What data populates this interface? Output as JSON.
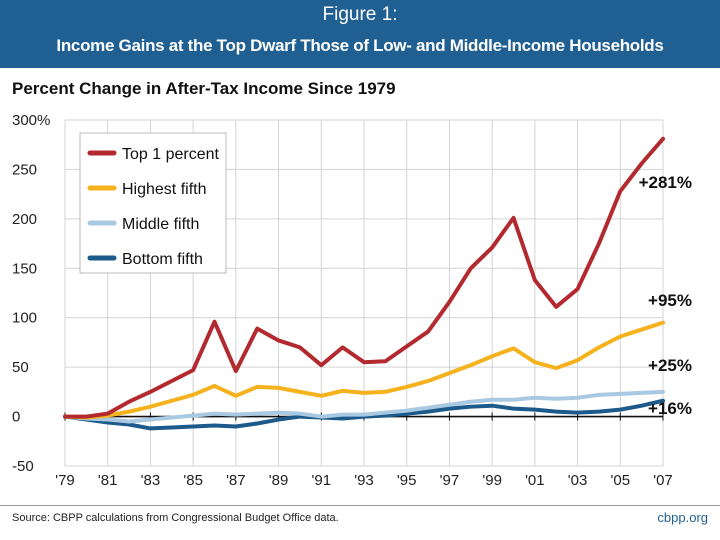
{
  "figure": {
    "label": "Figure 1:",
    "title": "Income Gains at the Top Dwarf Those of Low- and Middle-Income Households"
  },
  "footer": {
    "source": "Source: CBPP calculations from Congressional Budget Office data.",
    "credit": "cbpp.org"
  },
  "chart_data": {
    "type": "line",
    "title": "Income Gains at the Top Dwarf Those of Low- and Middle-Income Households",
    "subtitle": "Percent Change in After-Tax Income Since 1979",
    "xlabel": "",
    "ylabel": "",
    "ylim": [
      -50,
      300
    ],
    "xlim": [
      1979,
      2007
    ],
    "y_ticks": [
      -50,
      0,
      50,
      100,
      150,
      200,
      250,
      300
    ],
    "y_tick_labels": [
      "-50",
      "0",
      "50",
      "100",
      "150",
      "200",
      "250",
      "300%"
    ],
    "x_ticks": [
      1979,
      1981,
      1983,
      1985,
      1987,
      1989,
      1991,
      1993,
      1995,
      1997,
      1999,
      2001,
      2003,
      2005,
      2007
    ],
    "x_tick_labels": [
      "'79",
      "'81",
      "'83",
      "'85",
      "'87",
      "'89",
      "'91",
      "'93",
      "'95",
      "'97",
      "'99",
      "'01",
      "'03",
      "'05",
      "'07"
    ],
    "grid": true,
    "legend_position": "top-left",
    "x": [
      1979,
      1980,
      1981,
      1982,
      1983,
      1984,
      1985,
      1986,
      1987,
      1988,
      1989,
      1990,
      1991,
      1992,
      1993,
      1994,
      1995,
      1996,
      1997,
      1998,
      1999,
      2000,
      2001,
      2002,
      2003,
      2004,
      2005,
      2006,
      2007
    ],
    "series": [
      {
        "name": "Top 1 percent",
        "color": "#b22a2f",
        "values": [
          0,
          0,
          3,
          15,
          25,
          36,
          47,
          96,
          46,
          89,
          77,
          70,
          52,
          70,
          55,
          56,
          71,
          86,
          116,
          150,
          171,
          201,
          138,
          111,
          129,
          175,
          228,
          256,
          281
        ],
        "end_label": "+281%"
      },
      {
        "name": "Highest fifth",
        "color": "#f5b21c",
        "values": [
          0,
          -1,
          1,
          5,
          10,
          16,
          22,
          31,
          21,
          30,
          29,
          25,
          21,
          26,
          24,
          25,
          30,
          36,
          44,
          52,
          61,
          69,
          55,
          49,
          57,
          70,
          81,
          88,
          95
        ],
        "end_label": "+95%"
      },
      {
        "name": "Middle fifth",
        "color": "#a9c8e2",
        "values": [
          0,
          -2,
          -3,
          -5,
          -3,
          -1,
          1,
          3,
          2,
          3,
          4,
          3,
          0,
          2,
          2,
          4,
          6,
          9,
          12,
          15,
          17,
          17,
          19,
          18,
          19,
          22,
          23,
          24,
          25
        ],
        "end_label": "+25%"
      },
      {
        "name": "Bottom fifth",
        "color": "#1b5a8a",
        "values": [
          0,
          -3,
          -6,
          -8,
          -12,
          -11,
          -10,
          -9,
          -10,
          -7,
          -3,
          0,
          -1,
          -2,
          0,
          1,
          3,
          5,
          8,
          10,
          11,
          8,
          7,
          5,
          4,
          5,
          7,
          11,
          16
        ],
        "end_label": "+16%"
      }
    ]
  }
}
